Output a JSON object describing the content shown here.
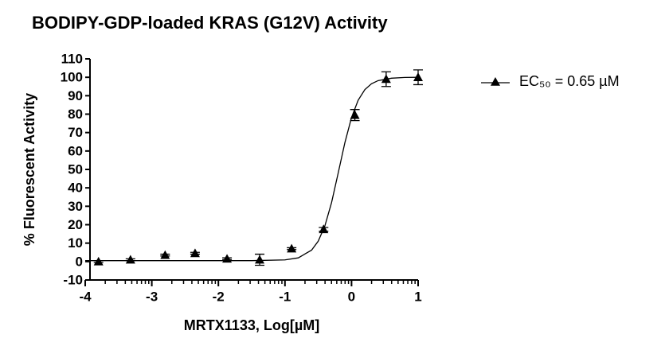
{
  "chart_data": {
    "type": "scatter",
    "title": "BODIPY-GDP-loaded KRAS (G12V) Activity",
    "xlabel": "MRTX1133, Log[µM]",
    "ylabel": "% Fluorescent Activity",
    "xlim": [
      -4,
      1
    ],
    "xticks": [
      -4,
      -3,
      -2,
      -1,
      0,
      1
    ],
    "ylim": [
      -10,
      110
    ],
    "yticks": [
      -10,
      0,
      10,
      20,
      30,
      40,
      50,
      60,
      70,
      80,
      90,
      100,
      110
    ],
    "x_minor_ticks": true,
    "legend": "top-right",
    "series": [
      {
        "name": "EC₅₀ = 0.65 µM",
        "color": "#000000",
        "x": [
          -3.8,
          -3.32,
          -2.8,
          -2.35,
          -1.87,
          -1.38,
          -0.9,
          -0.42,
          0.05,
          0.52,
          1.0
        ],
        "values": [
          0,
          1,
          3.5,
          4.5,
          1.5,
          1,
          7,
          17.5,
          79.5,
          99,
          100
        ],
        "errors": [
          0.5,
          0.5,
          0.5,
          0.5,
          0.5,
          3,
          0.5,
          1,
          3,
          4,
          4
        ],
        "fit": {
          "x": [
            -4,
            -3,
            -2,
            -1.5,
            -1,
            -0.8,
            -0.6,
            -0.5,
            -0.4,
            -0.3,
            -0.2,
            -0.1,
            0,
            0.1,
            0.2,
            0.3,
            0.4,
            0.6,
            0.8,
            1
          ],
          "values": [
            0.5,
            0.5,
            0.5,
            0.5,
            0.9,
            2,
            6.2,
            11.1,
            19.4,
            32,
            48.1,
            64.5,
            78.2,
            87.6,
            93.3,
            96.5,
            98.2,
            99.5,
            99.9,
            100
          ]
        }
      }
    ]
  }
}
